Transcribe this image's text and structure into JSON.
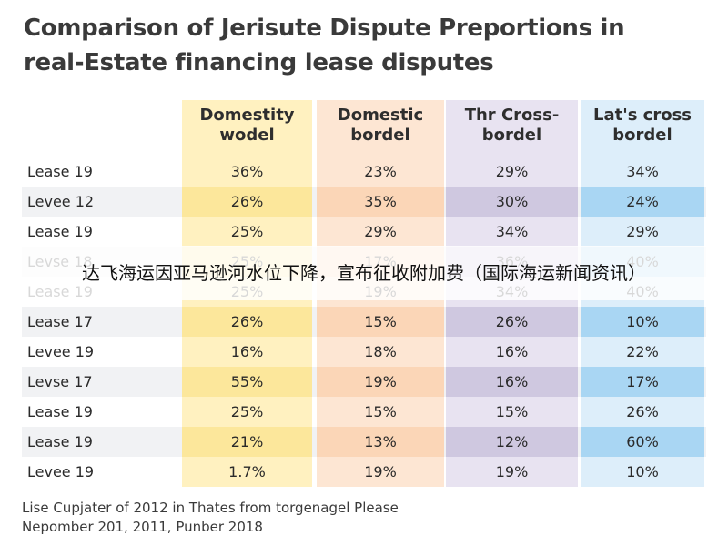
{
  "title": {
    "line1": "Comparison of Jerisute Dispute Preportions in",
    "line2": "real-Estate financing lease disputes"
  },
  "overlay": {
    "text": "达飞海运因亚马逊河水位下降，宣布征收附加费（国际海运新闻资讯）"
  },
  "footnote": {
    "line1": "Lise Cupjater of 2012 in Thates  from torgenagel Please",
    "line2": "Nepomber 201, 2011, Punber 2018"
  },
  "colors": {
    "col0": "#fff1c0",
    "col1": "#fde6d3",
    "col2": "#e8e3f1",
    "col3": "#ddeefa"
  },
  "chart_data": {
    "type": "table",
    "title": "Comparison of Jerisute Dispute Preportions in real-Estate financing lease disputes",
    "columns": [
      "Domestity\nwodel",
      "Domestic\nbordel",
      "Thr Cross-\nbordel",
      "Lat's cross\nbordel"
    ],
    "rows": [
      {
        "label": "Lease 19",
        "values": [
          "36%",
          "23%",
          "29%",
          "34%"
        ],
        "shaded": false
      },
      {
        "label": "Levee 12",
        "values": [
          "26%",
          "35%",
          "30%",
          "24%"
        ],
        "shaded": true
      },
      {
        "label": "Lease 19",
        "values": [
          "25%",
          "29%",
          "34%",
          "29%"
        ],
        "shaded": false
      },
      {
        "label": "Levse 18",
        "values": [
          "25%",
          "17%",
          "36%",
          "40%"
        ],
        "shaded": true
      },
      {
        "label": "Lease 19",
        "values": [
          "25%",
          "19%",
          "34%",
          "40%"
        ],
        "shaded": false
      },
      {
        "label": "Lease 17",
        "values": [
          "26%",
          "15%",
          "26%",
          "10%"
        ],
        "shaded": true
      },
      {
        "label": "Levee 19",
        "values": [
          "16%",
          "18%",
          "16%",
          "22%"
        ],
        "shaded": false
      },
      {
        "label": "Levse 17",
        "values": [
          "55%",
          "19%",
          "16%",
          "17%"
        ],
        "shaded": true
      },
      {
        "label": "Lease 19",
        "values": [
          "25%",
          "15%",
          "15%",
          "26%"
        ],
        "shaded": false
      },
      {
        "label": "Lease 19",
        "values": [
          "21%",
          "13%",
          "12%",
          "60%"
        ],
        "shaded": true
      },
      {
        "label": "Levee 19",
        "values": [
          "1.7%",
          "19%",
          "19%",
          "10%"
        ],
        "shaded": false
      }
    ]
  }
}
